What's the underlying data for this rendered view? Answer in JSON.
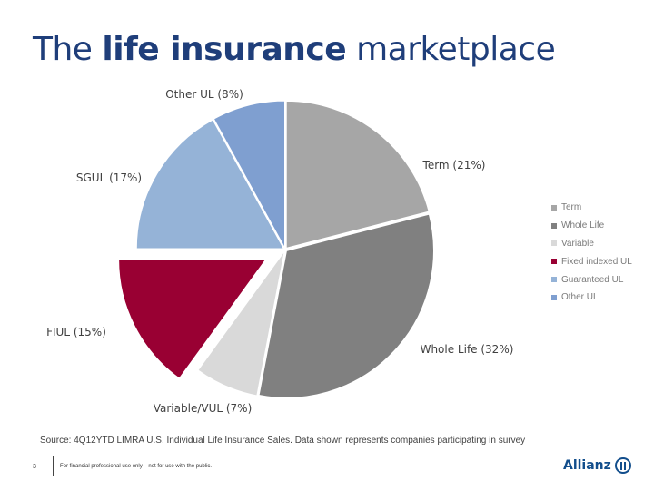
{
  "header": {
    "title_pre": "The ",
    "title_bold": "life insurance",
    "title_post": " marketplace"
  },
  "chart_data": {
    "type": "pie",
    "title": "The life insurance marketplace",
    "slices": [
      {
        "name": "Term",
        "value": 21,
        "label": "Term (21%)",
        "color": "#a6a6a6"
      },
      {
        "name": "Whole Life",
        "value": 32,
        "label": "Whole Life (32%)",
        "color": "#808080"
      },
      {
        "name": "Variable",
        "value": 7,
        "label": "Variable/VUL (7%)",
        "color": "#d9d9d9"
      },
      {
        "name": "Fixed indexed UL",
        "value": 15,
        "label": "FIUL (15%)",
        "color": "#990033"
      },
      {
        "name": "Guaranteed UL",
        "value": 17,
        "label": "SGUL (17%)",
        "color": "#95b3d7"
      },
      {
        "name": "Other UL",
        "value": 8,
        "label": "Other UL (8%)",
        "color": "#7f9fd0"
      }
    ],
    "exploded": [
      "Fixed indexed UL"
    ],
    "legend_position": "right"
  },
  "source": "Source: 4Q12YTD LIMRA U.S. Individual Life Insurance Sales. Data shown represents companies participating in survey",
  "footer": {
    "page_number": "3",
    "disclaimer": "For financial professional use only – not for use with the public.",
    "logo": "Allianz"
  }
}
